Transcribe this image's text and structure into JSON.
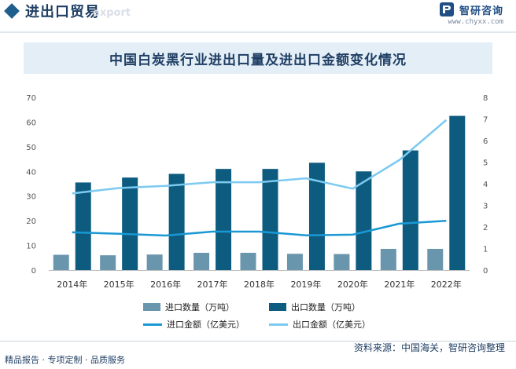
{
  "header": {
    "title": "进出口贸易",
    "watermark": "export",
    "brand_name": "智研咨询",
    "brand_url": "www.chyxx.com"
  },
  "chart_data": {
    "type": "bar",
    "title": "中国白炭黑行业进出口量及进出口金额变化情况",
    "categories": [
      "2014年",
      "2015年",
      "2016年",
      "2017年",
      "2018年",
      "2019年",
      "2020年",
      "2021年",
      "2022年"
    ],
    "y_left": {
      "range": [
        0,
        70
      ],
      "ticks": [
        0,
        10,
        20,
        30,
        40,
        50,
        60,
        70
      ]
    },
    "y_right": {
      "range": [
        0,
        8
      ],
      "ticks": [
        0,
        1,
        2,
        3,
        4,
        5,
        6,
        7,
        8
      ]
    },
    "series": [
      {
        "name": "进口数量（万吨）",
        "kind": "bar",
        "axis": "left",
        "color": "#6a96ad",
        "values": [
          6.2,
          6.0,
          6.3,
          7.0,
          7.0,
          6.6,
          6.5,
          8.6,
          8.6
        ]
      },
      {
        "name": "出口数量（万吨）",
        "kind": "bar",
        "axis": "left",
        "color": "#0d5c80",
        "values": [
          35.5,
          37.5,
          39.0,
          41.0,
          41.0,
          43.5,
          40.0,
          48.5,
          62.5
        ]
      },
      {
        "name": "进口金额（亿美元）",
        "kind": "line",
        "axis": "right",
        "color": "#1a98d4",
        "values": [
          1.75,
          1.68,
          1.6,
          1.78,
          1.78,
          1.61,
          1.64,
          2.15,
          2.28
        ]
      },
      {
        "name": "出口金额（亿美元）",
        "kind": "line",
        "axis": "right",
        "color": "#7dcaf0",
        "values": [
          3.55,
          3.8,
          3.9,
          4.07,
          4.07,
          4.25,
          3.77,
          5.1,
          6.95
        ]
      }
    ],
    "grid": false,
    "legend_position": "bottom"
  },
  "footer": {
    "left_text": "精品报告 · 专项定制 · 品质服务",
    "source_text": "资料来源：中国海关，智研咨询整理"
  }
}
